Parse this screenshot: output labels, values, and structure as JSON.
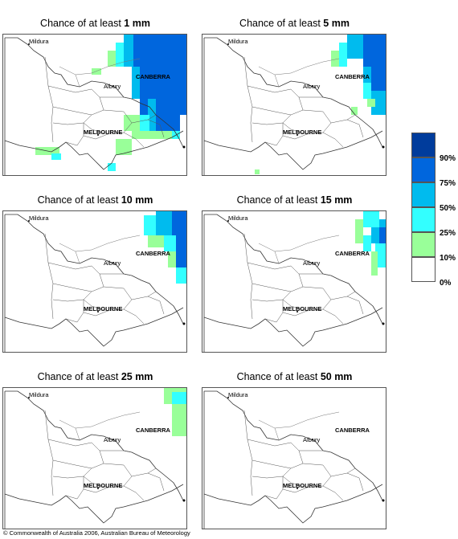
{
  "panels": [
    {
      "prefix": "Chance of at least ",
      "amount": "1 mm"
    },
    {
      "prefix": "Chance of at least ",
      "amount": "5 mm"
    },
    {
      "prefix": "Chance of at least ",
      "amount": "10 mm"
    },
    {
      "prefix": "Chance of at least ",
      "amount": "15 mm"
    },
    {
      "prefix": "Chance of at least ",
      "amount": "25 mm"
    },
    {
      "prefix": "Chance of at least ",
      "amount": "50 mm"
    }
  ],
  "cities": {
    "mildura": "Mildura",
    "canberra": "CANBERRA",
    "albury": "Albury",
    "melbourne": "MELBOURNE"
  },
  "legend": {
    "ticks": [
      "90%",
      "75%",
      "50%",
      "25%",
      "10%",
      "0%"
    ],
    "colors": [
      "#003c9c",
      "#0066dd",
      "#00bbee",
      "#33ffff",
      "#99ff99",
      "#ffffff"
    ]
  },
  "copyright": "© Commonwealth of Australia 2006, Australian Bureau of Meteorology"
}
